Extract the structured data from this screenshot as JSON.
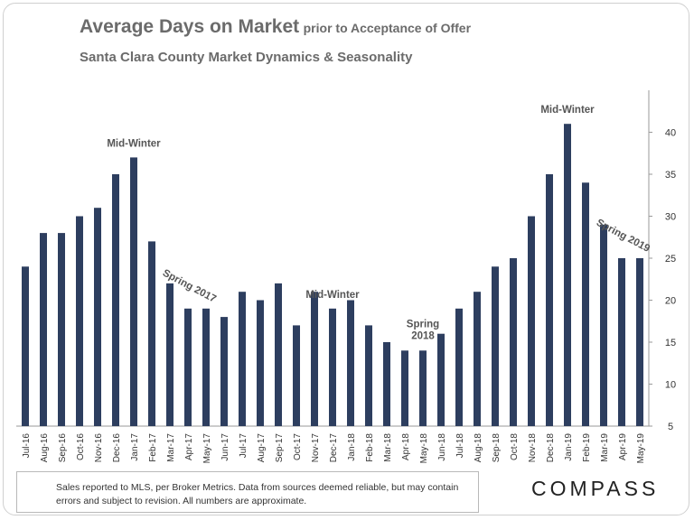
{
  "header": {
    "title": "Average Days on Market",
    "title_suffix": "prior to Acceptance of Offer",
    "subtitle": "Santa Clara County Market Dynamics & Seasonality"
  },
  "chart_data": {
    "type": "bar",
    "title": "Average Days on Market prior to Acceptance of Offer",
    "subtitle": "Santa Clara County Market Dynamics & Seasonality",
    "xlabel": "",
    "ylabel": "",
    "ylim": [
      5,
      45
    ],
    "yticks": [
      5,
      10,
      15,
      20,
      25,
      30,
      35,
      40
    ],
    "y_axis_side": "right",
    "grid": false,
    "bar_color": "#2d3e5f",
    "categories": [
      "Jul-16",
      "Aug-16",
      "Sep-16",
      "Oct-16",
      "Nov-16",
      "Dec-16",
      "Jan-17",
      "Feb-17",
      "Mar-17",
      "Apr-17",
      "May-17",
      "Jun-17",
      "Jul-17",
      "Aug-17",
      "Sep-17",
      "Oct-17",
      "Nov-17",
      "Dec-17",
      "Jan-18",
      "Feb-18",
      "Mar-18",
      "Apr-18",
      "May-18",
      "Jun-18",
      "Jul-18",
      "Aug-18",
      "Sep-18",
      "Oct-18",
      "Nov-18",
      "Dec-18",
      "Jan-19",
      "Feb-19",
      "Mar-19",
      "Apr-19",
      "May-19"
    ],
    "values": [
      24,
      28,
      28,
      30,
      31,
      35,
      37,
      27,
      22,
      19,
      19,
      18,
      21,
      20,
      22,
      17,
      21,
      19,
      20,
      17,
      15,
      14,
      14,
      16,
      19,
      21,
      24,
      25,
      30,
      35,
      41,
      34,
      29,
      25,
      25
    ],
    "annotations": [
      {
        "text": "Mid-Winter",
        "category": "Jan-17"
      },
      {
        "text": "Spring 2017",
        "category": "Apr-17",
        "rotated": true
      },
      {
        "text": "Mid-Winter",
        "category": "Dec-17"
      },
      {
        "text": "Spring",
        "text2": "2018",
        "category": "May-18"
      },
      {
        "text": "Mid-Winter",
        "category": "Jan-19"
      },
      {
        "text": "Spring 2019",
        "category": "Apr-19",
        "rotated": true
      }
    ]
  },
  "footer": {
    "note": "Sales reported to MLS, per Broker Metrics. Data from sources deemed reliable, but may contain errors and subject to revision. All numbers are approximate.",
    "logo": "COMPASS"
  }
}
